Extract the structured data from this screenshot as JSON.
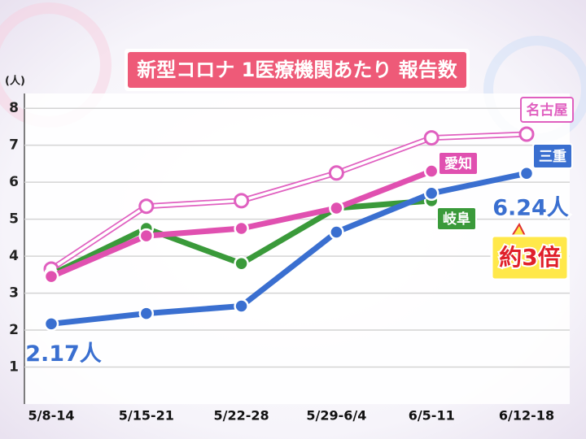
{
  "chart_data": {
    "type": "line",
    "title": "新型コロナ 1医療機関あたり 報告数",
    "y_label": "(人)",
    "categories": [
      "5/8-14",
      "5/15-21",
      "5/22-28",
      "5/29-6/4",
      "6/5-11",
      "6/12-18"
    ],
    "series": [
      {
        "name": "名古屋",
        "color": "#e060c0",
        "values": [
          3.65,
          5.35,
          5.5,
          6.25,
          7.2,
          7.3
        ]
      },
      {
        "name": "岐阜",
        "color": "#3a9a3a",
        "values": [
          3.5,
          4.75,
          3.8,
          5.3,
          5.5,
          null
        ]
      },
      {
        "name": "愛知",
        "color": "#e050b0",
        "values": [
          3.45,
          4.55,
          4.75,
          5.3,
          6.3,
          null
        ]
      },
      {
        "name": "三重",
        "color": "#3a6fd0",
        "values": [
          2.17,
          2.45,
          2.65,
          4.65,
          5.7,
          6.24
        ],
        "value_labels": [
          "2.17人",
          null,
          null,
          null,
          null,
          "6.24人"
        ]
      }
    ],
    "annotation": "約3倍",
    "ylim": [
      0,
      8.4
    ],
    "yticks": [
      1,
      2,
      3,
      4,
      5,
      6,
      7,
      8
    ],
    "grid": true
  }
}
